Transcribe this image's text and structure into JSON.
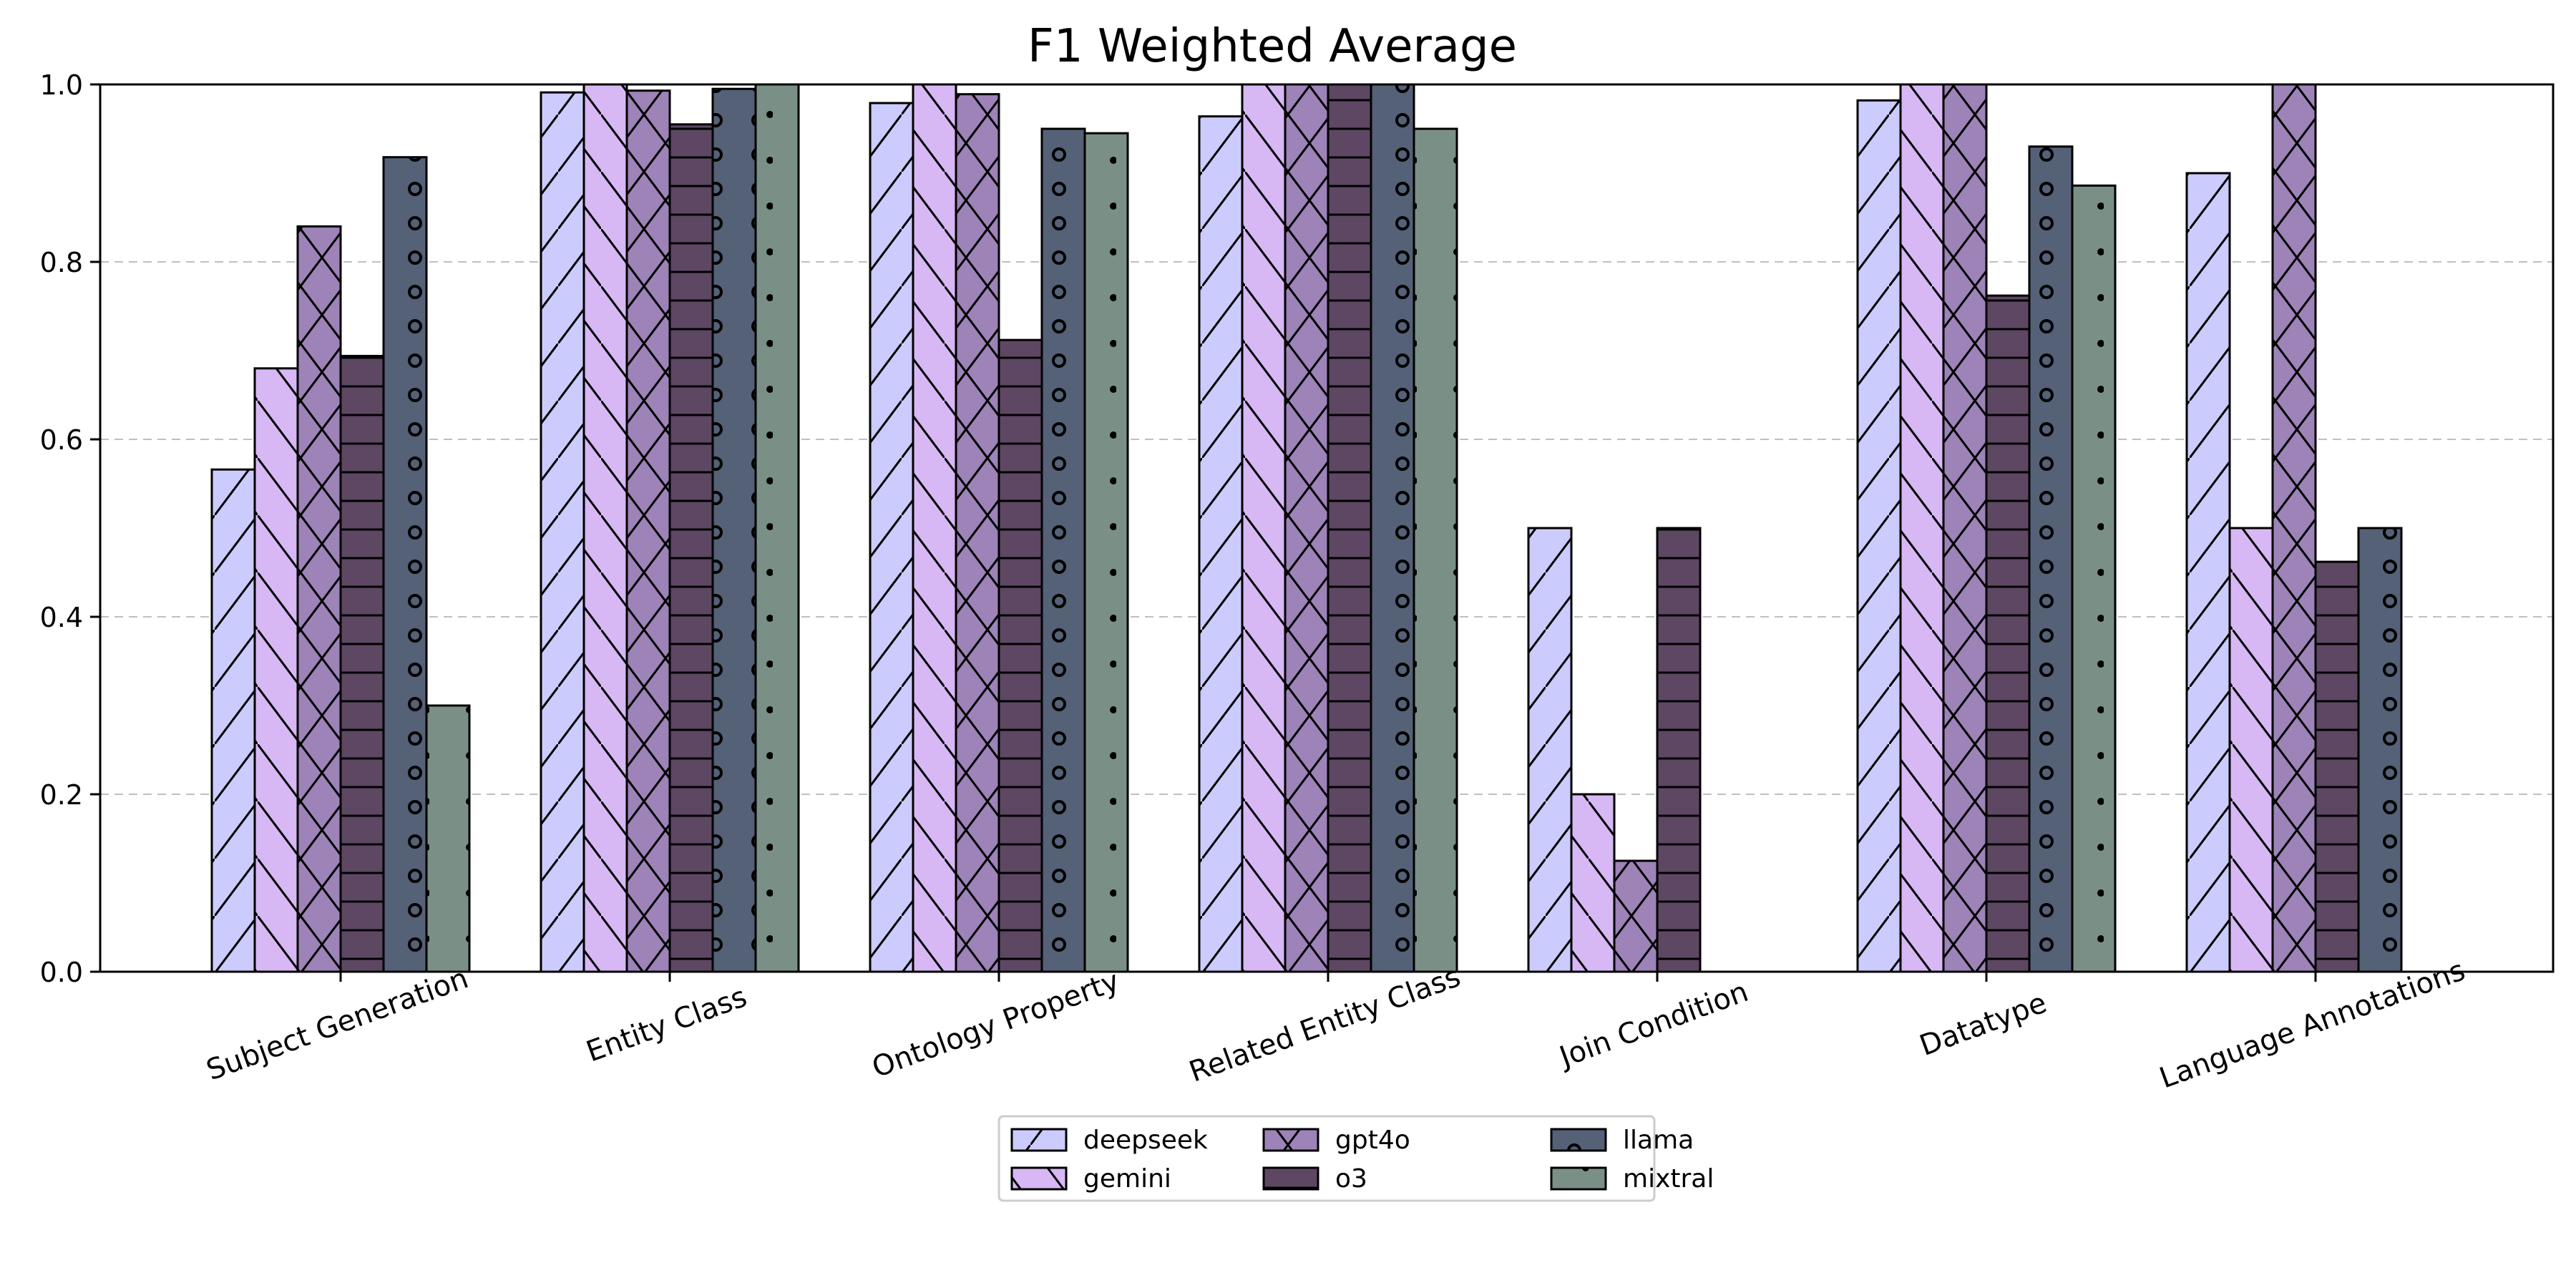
{
  "chart_data": {
    "type": "bar",
    "title": "F1 Weighted Average",
    "xlabel": "",
    "ylabel": "",
    "ylim": [
      0,
      1.0
    ],
    "yticks": [
      "0.0",
      "0.2",
      "0.4",
      "0.6",
      "0.8",
      "1.0"
    ],
    "grid": "y-dashed",
    "legend_position": "bottom-center",
    "categories": [
      "Subject Generation",
      "Entity Class",
      "Ontology Property",
      "Related Entity Class",
      "Join Condition",
      "Datatype",
      "Language Annotations"
    ],
    "series": [
      {
        "name": "deepseek",
        "color": "#cccbfd",
        "hatch": "forward-slash",
        "values": [
          0.566,
          0.991,
          0.979,
          0.964,
          0.5,
          0.982,
          0.9
        ]
      },
      {
        "name": "gemini",
        "color": "#d7b8f4",
        "hatch": "back-slash",
        "values": [
          0.68,
          1.0,
          1.0,
          1.0,
          0.2,
          1.0,
          0.5
        ]
      },
      {
        "name": "gpt4o",
        "color": "#9d83b8",
        "hatch": "cross",
        "values": [
          0.84,
          0.993,
          0.989,
          1.0,
          0.125,
          1.0,
          1.0
        ]
      },
      {
        "name": "o3",
        "color": "#5d4763",
        "hatch": "horizontal",
        "values": [
          0.694,
          0.955,
          0.712,
          1.0,
          0.5,
          0.762,
          0.462
        ]
      },
      {
        "name": "llama",
        "color": "#546177",
        "hatch": "circles",
        "values": [
          0.918,
          0.995,
          0.95,
          1.0,
          0.0,
          0.93,
          0.5
        ]
      },
      {
        "name": "mixtral",
        "color": "#7a9086",
        "hatch": "dots",
        "values": [
          0.3,
          1.0,
          0.945,
          0.95,
          0.0,
          0.886,
          0.0
        ]
      }
    ]
  }
}
